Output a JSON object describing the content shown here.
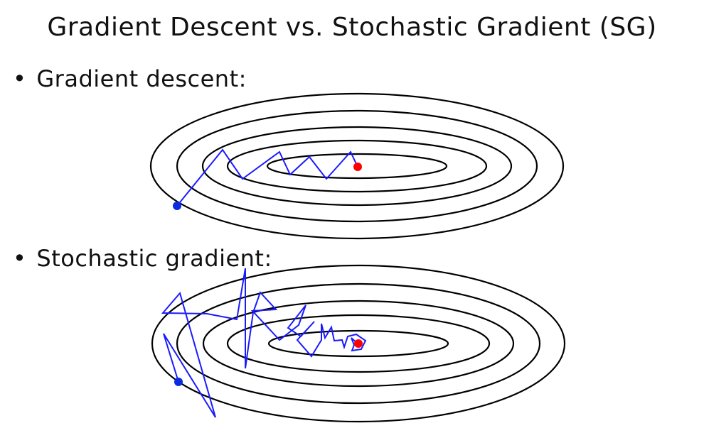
{
  "title": "Gradient Descent vs. Stochastic Gradient (SG)",
  "sections": [
    {
      "bullet": "•",
      "label": "Gradient descent:"
    },
    {
      "bullet": "•",
      "label": "Stochastic gradient:"
    }
  ],
  "colors": {
    "contour": "#000000",
    "path": "#1a1aff",
    "start_point": "#0a2be0",
    "optimum_point": "#ff0000"
  },
  "icons": {
    "start": "blue-dot",
    "optimum": "red-dot"
  }
}
